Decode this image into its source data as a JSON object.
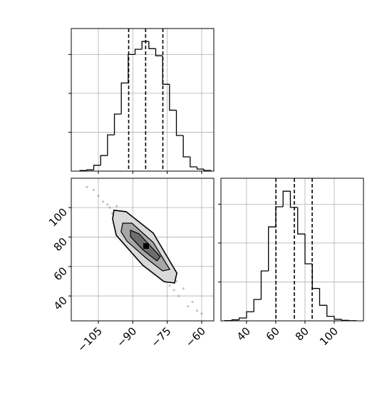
{
  "chart_data": [
    {
      "type": "histogram",
      "color": "#000000",
      "grid": true,
      "bins": [
        -113,
        -110,
        -107,
        -104,
        -101,
        -98,
        -95,
        -92,
        -89,
        -86,
        -83,
        -80,
        -77,
        -74,
        -71,
        -68,
        -65,
        -62,
        -59,
        -56
      ],
      "values": [
        5,
        10,
        45,
        120,
        280,
        440,
        680,
        900,
        940,
        1000,
        945,
        890,
        670,
        470,
        275,
        110,
        33,
        16,
        5
      ],
      "quantiles": [
        -91.8,
        -84.4,
        -76.9
      ],
      "xlim": [
        -116.8,
        -54.7
      ],
      "xticks": [
        -105,
        -90,
        -75,
        -60
      ],
      "ylim": [
        0,
        1100
      ],
      "yticks": [
        300,
        600,
        900
      ]
    },
    {
      "type": "scatter",
      "color": "#808080",
      "grid": true,
      "x": [
        -110,
        -107,
        -105,
        -103,
        -101,
        -100,
        -99,
        -97,
        -96,
        -95,
        -94,
        -93,
        -92,
        -91,
        -90,
        -89,
        -88,
        -87,
        -86,
        -85,
        -84,
        -83,
        -82,
        -81,
        -80,
        -79,
        -78,
        -77,
        -76,
        -75,
        -74,
        -73,
        -72,
        -71,
        -70,
        -68,
        -66,
        -64,
        -62,
        -60
      ],
      "y": [
        114,
        112,
        108,
        104,
        102,
        100,
        96,
        101,
        92,
        97,
        88,
        95,
        84,
        91,
        80,
        86,
        76,
        83,
        72,
        79,
        68,
        76,
        64,
        71,
        60,
        67,
        55,
        63,
        52,
        59,
        47,
        55,
        44,
        50,
        40,
        45,
        33,
        36,
        30,
        28
      ],
      "contours": [
        {
          "x": [
            -98.2,
            -92.9,
            -81.1,
            -70.8,
            -71.8,
            -76.4,
            -85.7,
            -97.2,
            -98.8
          ],
          "y": [
            98.2,
            97.2,
            82.7,
            55.5,
            48.8,
            49.7,
            60.9,
            81.2,
            92.3
          ]
        },
        {
          "x": [
            -94.4,
            -90.4,
            -81.1,
            -73.9,
            -77.0,
            -84.2,
            -92.6,
            -95.1
          ],
          "y": [
            89.4,
            89.4,
            76.4,
            58.0,
            57.0,
            65.7,
            77.3,
            83.6
          ]
        },
        {
          "x": [
            -91.0,
            -87.3,
            -78.0,
            -79.5,
            -85.7,
            -91.0
          ],
          "y": [
            84.6,
            82.2,
            66.7,
            63.8,
            71.5,
            80.2
          ]
        }
      ],
      "peak": {
        "x": -84.2,
        "y": 73.9
      },
      "xlim": [
        -116.8,
        -54.7
      ],
      "xticks": [
        {
          "value": -105,
          "label": "−105"
        },
        {
          "value": -90,
          "label": "−90"
        },
        {
          "value": -75,
          "label": "−75"
        },
        {
          "value": -60,
          "label": "−60"
        }
      ],
      "ylim": [
        23.1,
        119.9
      ],
      "yticks": [
        40,
        60,
        80,
        100
      ]
    },
    {
      "type": "histogram",
      "color": "#000000",
      "grid": true,
      "bins": [
        25,
        30,
        35,
        40,
        45,
        50,
        55,
        60,
        65,
        70,
        75,
        80,
        85,
        90,
        95,
        100,
        105,
        110,
        115
      ],
      "values": [
        2,
        8,
        22,
        70,
        165,
        385,
        725,
        880,
        1000,
        875,
        670,
        440,
        250,
        120,
        35,
        12,
        4,
        1
      ],
      "quantiles": [
        60.1,
        72.7,
        84.9
      ],
      "xlim": [
        22.5,
        120
      ],
      "xticks": [
        40,
        60,
        80,
        100
      ],
      "ylim": [
        0,
        1100
      ],
      "yticks": [
        300,
        600,
        900
      ]
    }
  ]
}
